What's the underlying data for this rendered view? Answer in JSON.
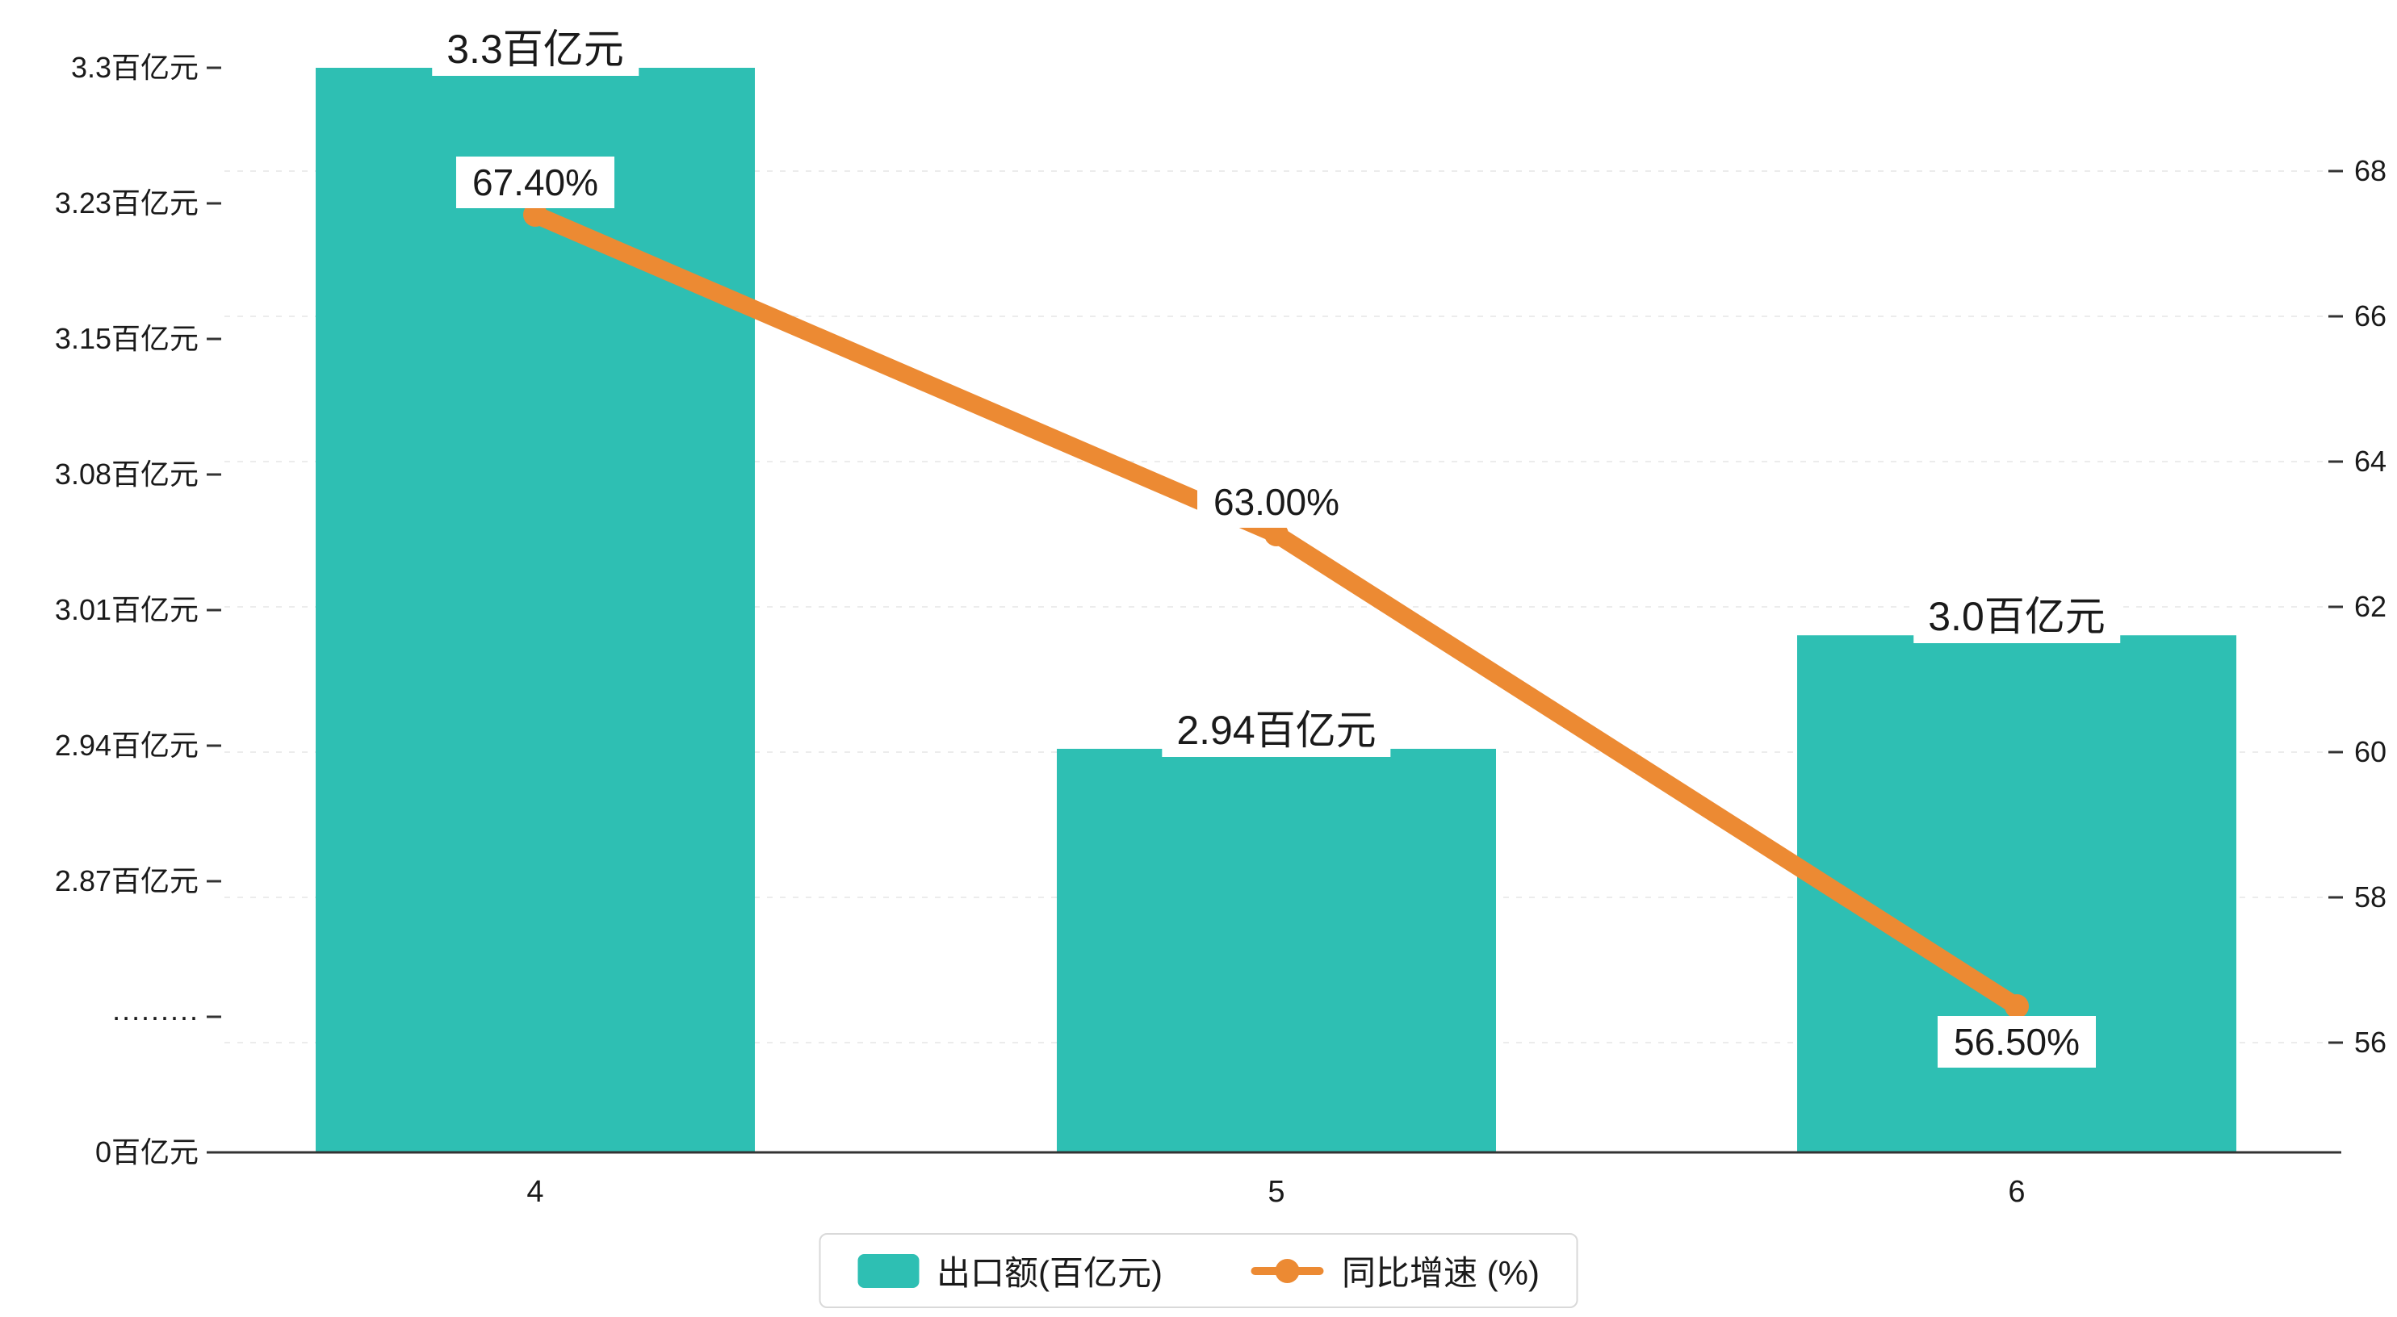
{
  "chart_data": {
    "type": "bar",
    "subtype": "bar+line dual axis",
    "categories": [
      "4",
      "5",
      "6"
    ],
    "series": [
      {
        "name": "出口额(百亿元)",
        "type": "bar",
        "axis": "left",
        "values": [
          3.3,
          2.94,
          3.0
        ],
        "labels": [
          "3.3百亿元",
          "2.94百亿元",
          "3.0百亿元"
        ],
        "color": "#2ebfb3"
      },
      {
        "name": "同比增速 (%)",
        "type": "line",
        "axis": "right",
        "values": [
          67.4,
          63.0,
          56.5
        ],
        "labels": [
          "67.40%",
          "63.00%",
          "56.50%"
        ],
        "color": "#ec8a33"
      }
    ],
    "left_axis": {
      "tick_labels": [
        "3.3百亿元",
        "3.23百亿元",
        "3.15百亿元",
        "3.08百亿元",
        "3.01百亿元",
        "2.94百亿元",
        "2.87百亿元",
        "·········",
        "0百亿元"
      ],
      "tick_values": [
        3.3,
        3.23,
        3.15,
        3.08,
        3.01,
        2.94,
        2.87,
        null,
        0
      ],
      "broken_axis": true
    },
    "right_axis": {
      "tick_labels": [
        "68",
        "66",
        "64",
        "62",
        "60",
        "58",
        "56"
      ],
      "min": 56,
      "max": 68
    },
    "legend": [
      {
        "label": "出口额(百亿元)",
        "marker": "rect",
        "color": "#2ebfb3"
      },
      {
        "label": "同比增速 (%)",
        "marker": "line-dot",
        "color": "#ec8a33"
      }
    ],
    "grid": "horizontal dashed",
    "legend_position": "bottom-center"
  },
  "colors": {
    "bar": "#2ebfb3",
    "line": "#ec8a33",
    "axis": "#333333",
    "grid": "#ececec",
    "label_bg": "#ffffff",
    "text": "#1a1a1a"
  }
}
